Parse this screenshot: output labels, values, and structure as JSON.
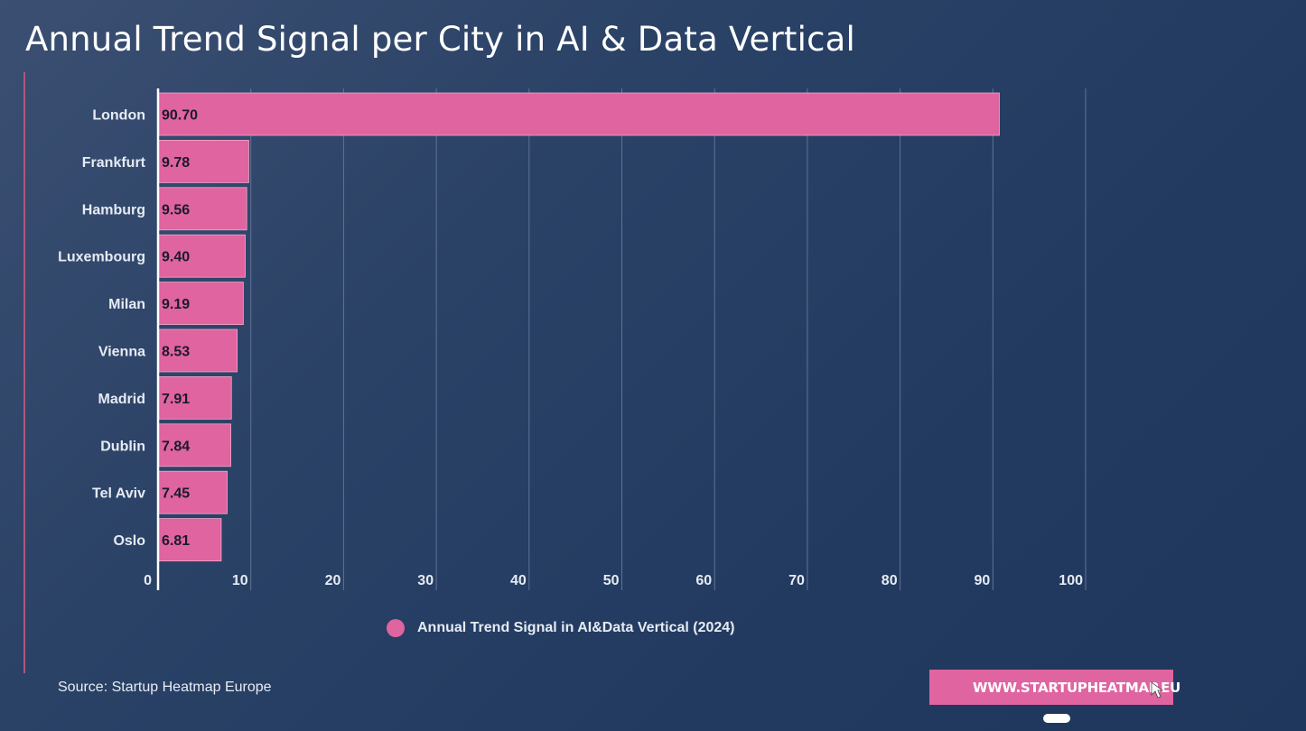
{
  "page": {
    "title": "Annual Trend Signal per City in AI & Data Vertical",
    "source": "Source: Startup Heatmap Europe",
    "website_label": "WWW.STARTUPHEATMAP.EU"
  },
  "colors": {
    "bar": "#df64a0",
    "accent_line": "#b0567f",
    "gridline": "#5f7394",
    "axis": "#ffffff",
    "label_text": "#1a1a2e"
  },
  "icons": {
    "website_button": "cursor-arrow-icon"
  },
  "chart_data": {
    "type": "bar",
    "orientation": "horizontal",
    "title": "Annual Trend Signal per City in AI & Data Vertical",
    "xlabel": "",
    "ylabel": "",
    "categories": [
      "London",
      "Frankfurt",
      "Hamburg",
      "Luxembourg",
      "Milan",
      "Vienna",
      "Madrid",
      "Dublin",
      "Tel Aviv",
      "Oslo"
    ],
    "series": [
      {
        "name": "Annual Trend Signal in AI&Data Vertical (2024)",
        "values": [
          90.7,
          9.78,
          9.56,
          9.4,
          9.19,
          8.53,
          7.91,
          7.84,
          7.45,
          6.81
        ],
        "labels": [
          "90.70",
          "9.78",
          "9.56",
          "9.40",
          "9.19",
          "8.53",
          "7.91",
          "7.84",
          "7.45",
          "6.81"
        ]
      }
    ],
    "xlim": [
      0,
      100
    ],
    "xticks": [
      0,
      10,
      20,
      30,
      40,
      50,
      60,
      70,
      80,
      90,
      100
    ],
    "grid": true,
    "legend_position": "bottom"
  }
}
